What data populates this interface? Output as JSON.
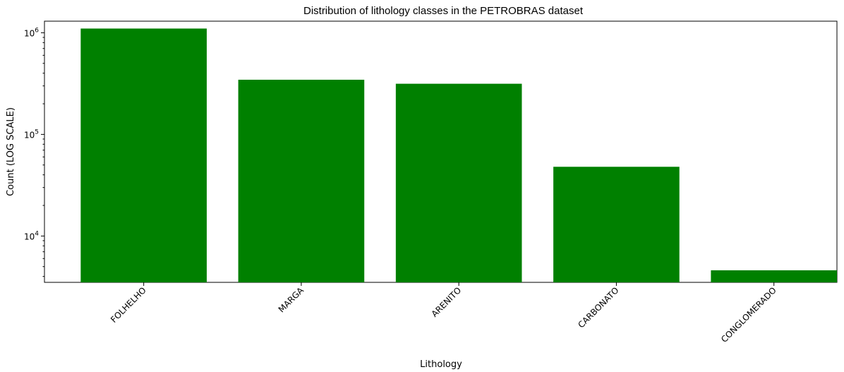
{
  "chart_data": {
    "type": "bar",
    "title": "Distribution of lithology classes in the PETROBRAS dataset",
    "xlabel": "Lithology",
    "ylabel": "Count (LOG SCALE)",
    "yscale": "log",
    "ylim": [
      3500,
      1300000
    ],
    "yticks": [
      {
        "value": 10000,
        "base": "10",
        "exp": "4"
      },
      {
        "value": 100000,
        "base": "10",
        "exp": "5"
      },
      {
        "value": 1000000,
        "base": "10",
        "exp": "6"
      }
    ],
    "categories": [
      "FOLHELHO",
      "MARGA",
      "ARENITO",
      "CARBONATO",
      "CONGLOMERADO"
    ],
    "values": [
      1100000,
      345000,
      315000,
      48000,
      4600
    ],
    "bar_color": "#008000",
    "grid": false,
    "legend": "none"
  }
}
